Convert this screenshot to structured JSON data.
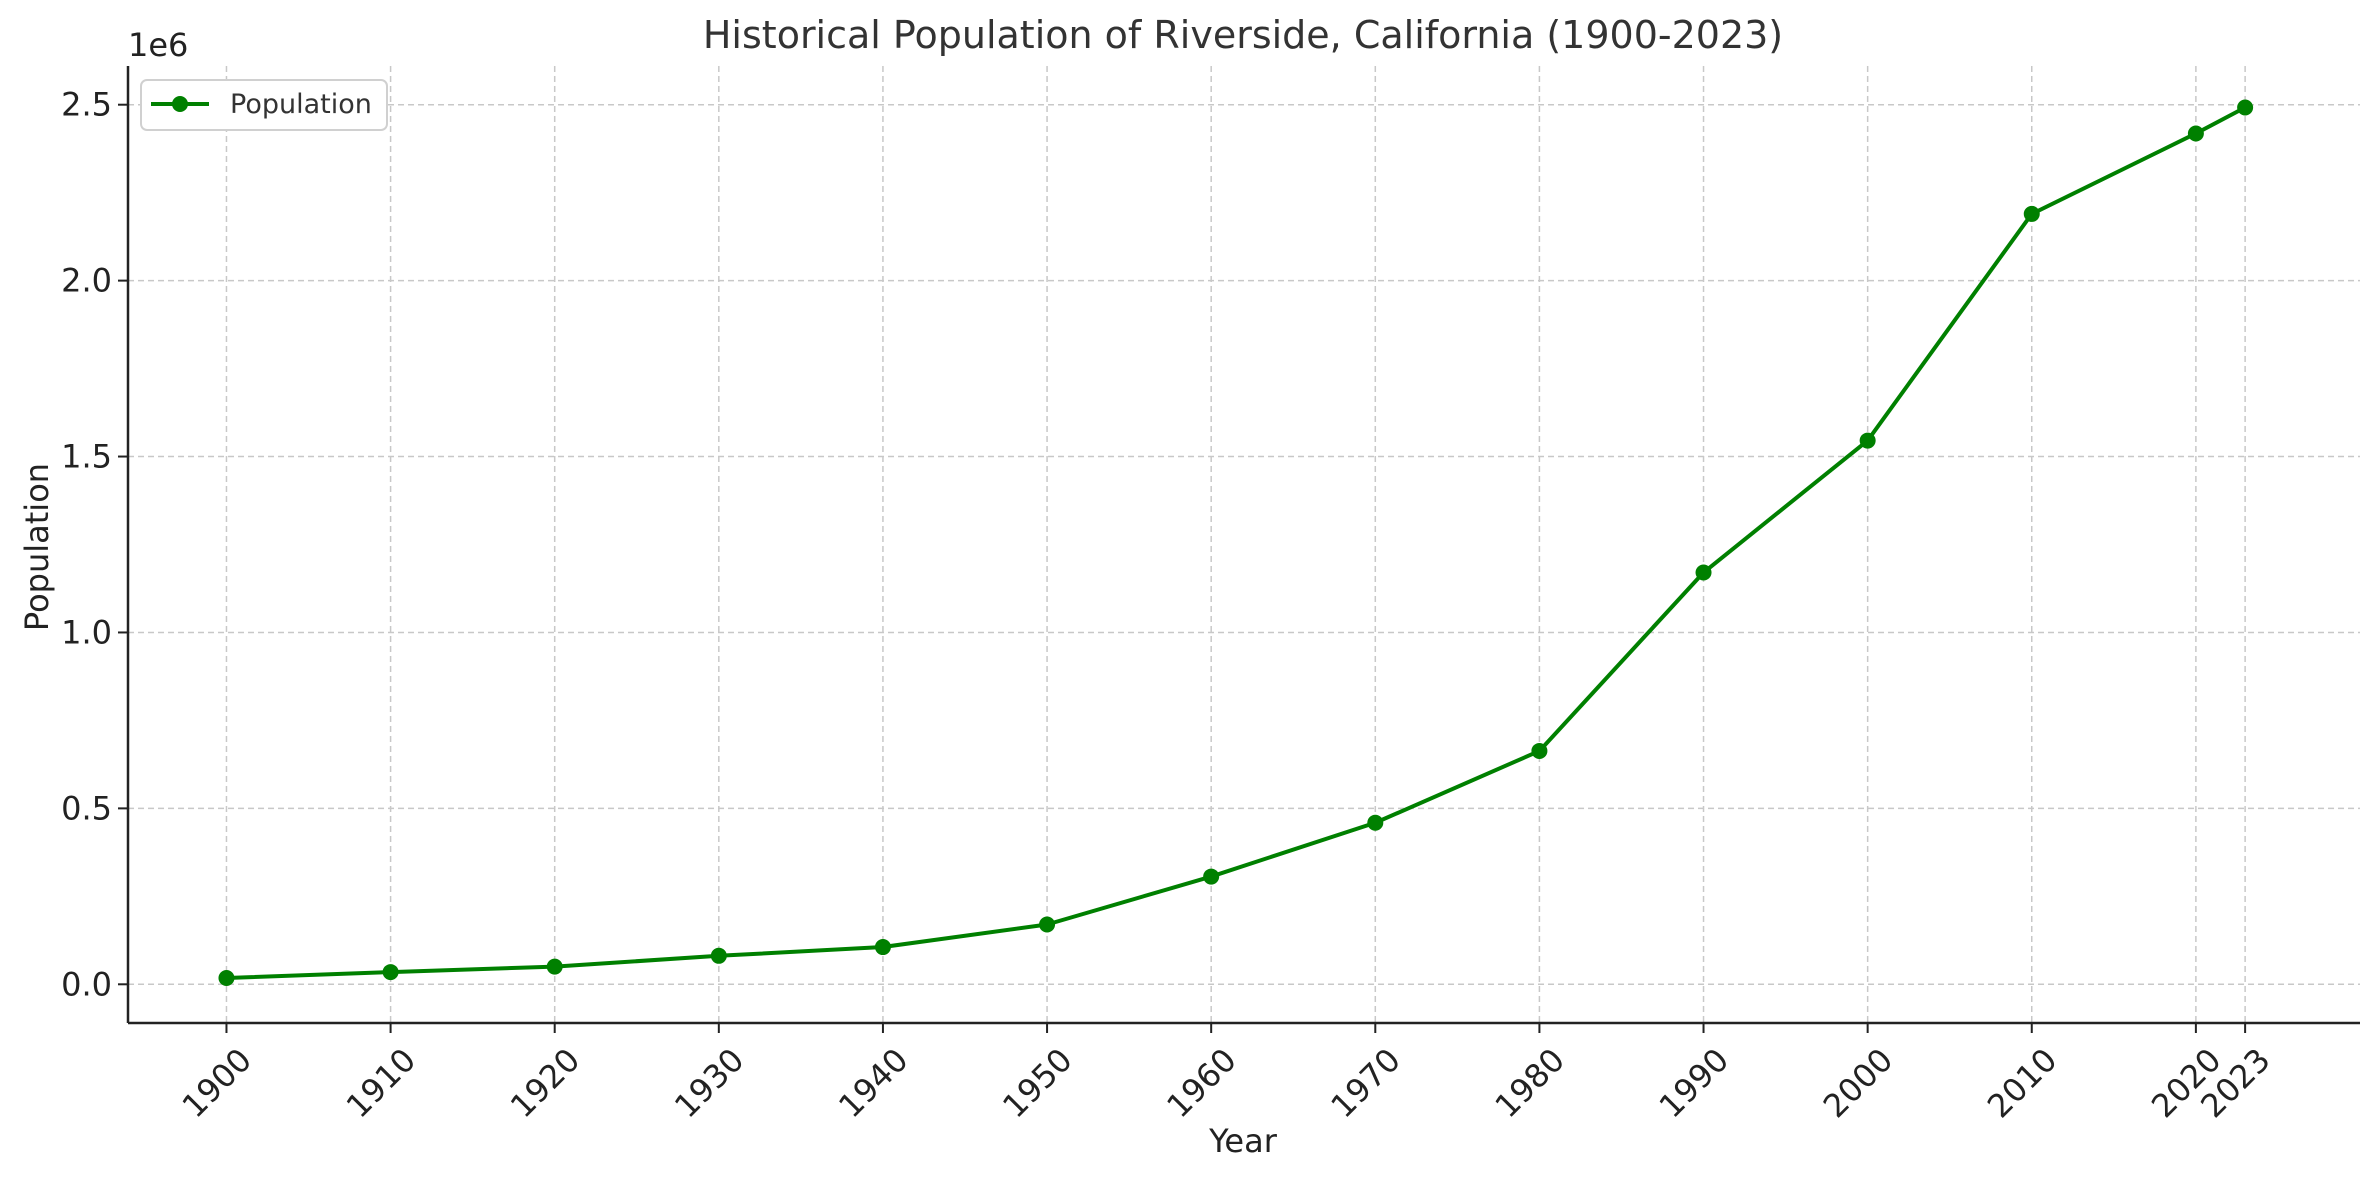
{
  "chart_data": {
    "type": "line",
    "title": "Historical Population of Riverside, California (1900-2023)",
    "xlabel": "Year",
    "ylabel": "Population",
    "y_offset_label": "1e6",
    "x_ticks": [
      "1900",
      "1910",
      "1920",
      "1930",
      "1940",
      "1950",
      "1960",
      "1970",
      "1980",
      "1990",
      "2000",
      "2010",
      "2020",
      "2023"
    ],
    "y_ticks": [
      "0.0",
      "0.5",
      "1.0",
      "1.5",
      "2.0",
      "2.5"
    ],
    "xlim": [
      1894,
      2030
    ],
    "ylim": [
      -110000,
      2610000
    ],
    "grid": true,
    "legend_position": "top-left",
    "series": [
      {
        "name": "Population",
        "color": "#008000",
        "marker": "circle",
        "x": [
          1900,
          1910,
          1920,
          1930,
          1940,
          1950,
          1960,
          1970,
          1980,
          1990,
          2000,
          2010,
          2020,
          2023
        ],
        "values": [
          17900,
          34700,
          50300,
          81000,
          105900,
          170000,
          306200,
          459100,
          663200,
          1170400,
          1545400,
          2189600,
          2418200,
          2492000
        ]
      }
    ]
  }
}
